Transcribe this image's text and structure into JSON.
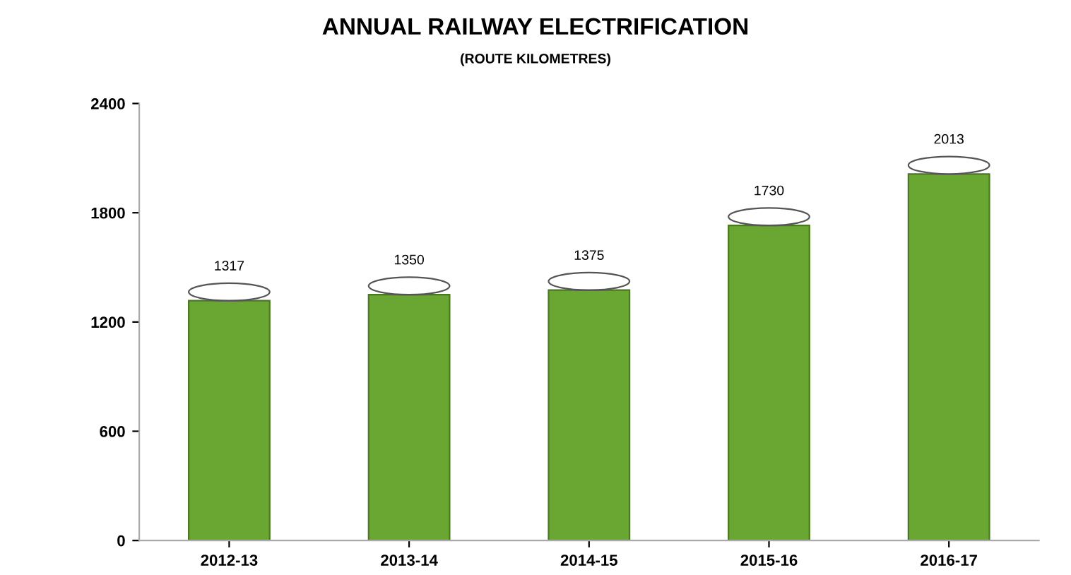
{
  "chart_data": {
    "type": "bar",
    "title": "ANNUAL RAILWAY ELECTRIFICATION",
    "subtitle": "(ROUTE KILOMETRES)",
    "categories": [
      "2012-13",
      "2013-14",
      "2014-15",
      "2015-16",
      "2016-17"
    ],
    "values": [
      1317,
      1350,
      1375,
      1730,
      2013
    ],
    "color": "#6aa632",
    "ylim": [
      0,
      2400
    ],
    "yticks": [
      0,
      600,
      1200,
      1800,
      2400
    ],
    "grid": false,
    "data_labels": true
  }
}
